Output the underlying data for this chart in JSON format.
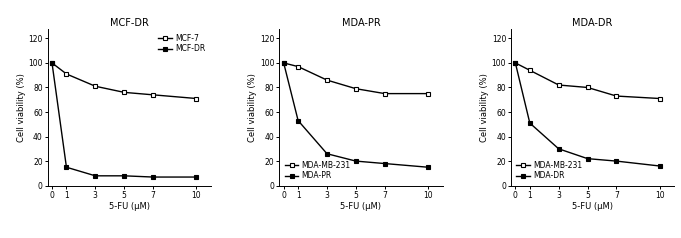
{
  "panels": [
    {
      "title": "MCF-DR",
      "x": [
        0,
        1,
        3,
        5,
        7,
        10
      ],
      "lines": [
        {
          "label": "MCF-7",
          "y": [
            100,
            91,
            81,
            76,
            74,
            71
          ],
          "fillstyle": "none"
        },
        {
          "label": "MCF-DR",
          "y": [
            100,
            15,
            8,
            8,
            7,
            7
          ],
          "fillstyle": "full"
        }
      ],
      "legend_loc": "upper right"
    },
    {
      "title": "MDA-PR",
      "x": [
        0,
        1,
        3,
        5,
        7,
        10
      ],
      "lines": [
        {
          "label": "MDA-MB-231",
          "y": [
            100,
            97,
            86,
            79,
            75,
            75
          ],
          "fillstyle": "none"
        },
        {
          "label": "MDA-PR",
          "y": [
            100,
            53,
            26,
            20,
            18,
            15
          ],
          "fillstyle": "full"
        }
      ],
      "legend_loc": "lower left"
    },
    {
      "title": "MDA-DR",
      "x": [
        0,
        1,
        3,
        5,
        7,
        10
      ],
      "lines": [
        {
          "label": "MDA-MB-231",
          "y": [
            100,
            94,
            82,
            80,
            73,
            71
          ],
          "fillstyle": "none"
        },
        {
          "label": "MDA-DR",
          "y": [
            100,
            51,
            30,
            22,
            20,
            16
          ],
          "fillstyle": "full"
        }
      ],
      "legend_loc": "lower left"
    }
  ],
  "xlabel": "5-FU (μM)",
  "ylabel": "Cell viability (%)",
  "yticks": [
    0,
    20,
    40,
    60,
    80,
    100,
    120
  ],
  "xticks": [
    0,
    1,
    3,
    5,
    7,
    10
  ],
  "ylim": [
    0,
    128
  ],
  "xlim": [
    -0.3,
    11
  ],
  "title_fontsize": 7,
  "label_fontsize": 6,
  "tick_fontsize": 5.5,
  "legend_fontsize": 5.5,
  "linewidth": 1.0,
  "markersize": 3.0,
  "color": "black"
}
